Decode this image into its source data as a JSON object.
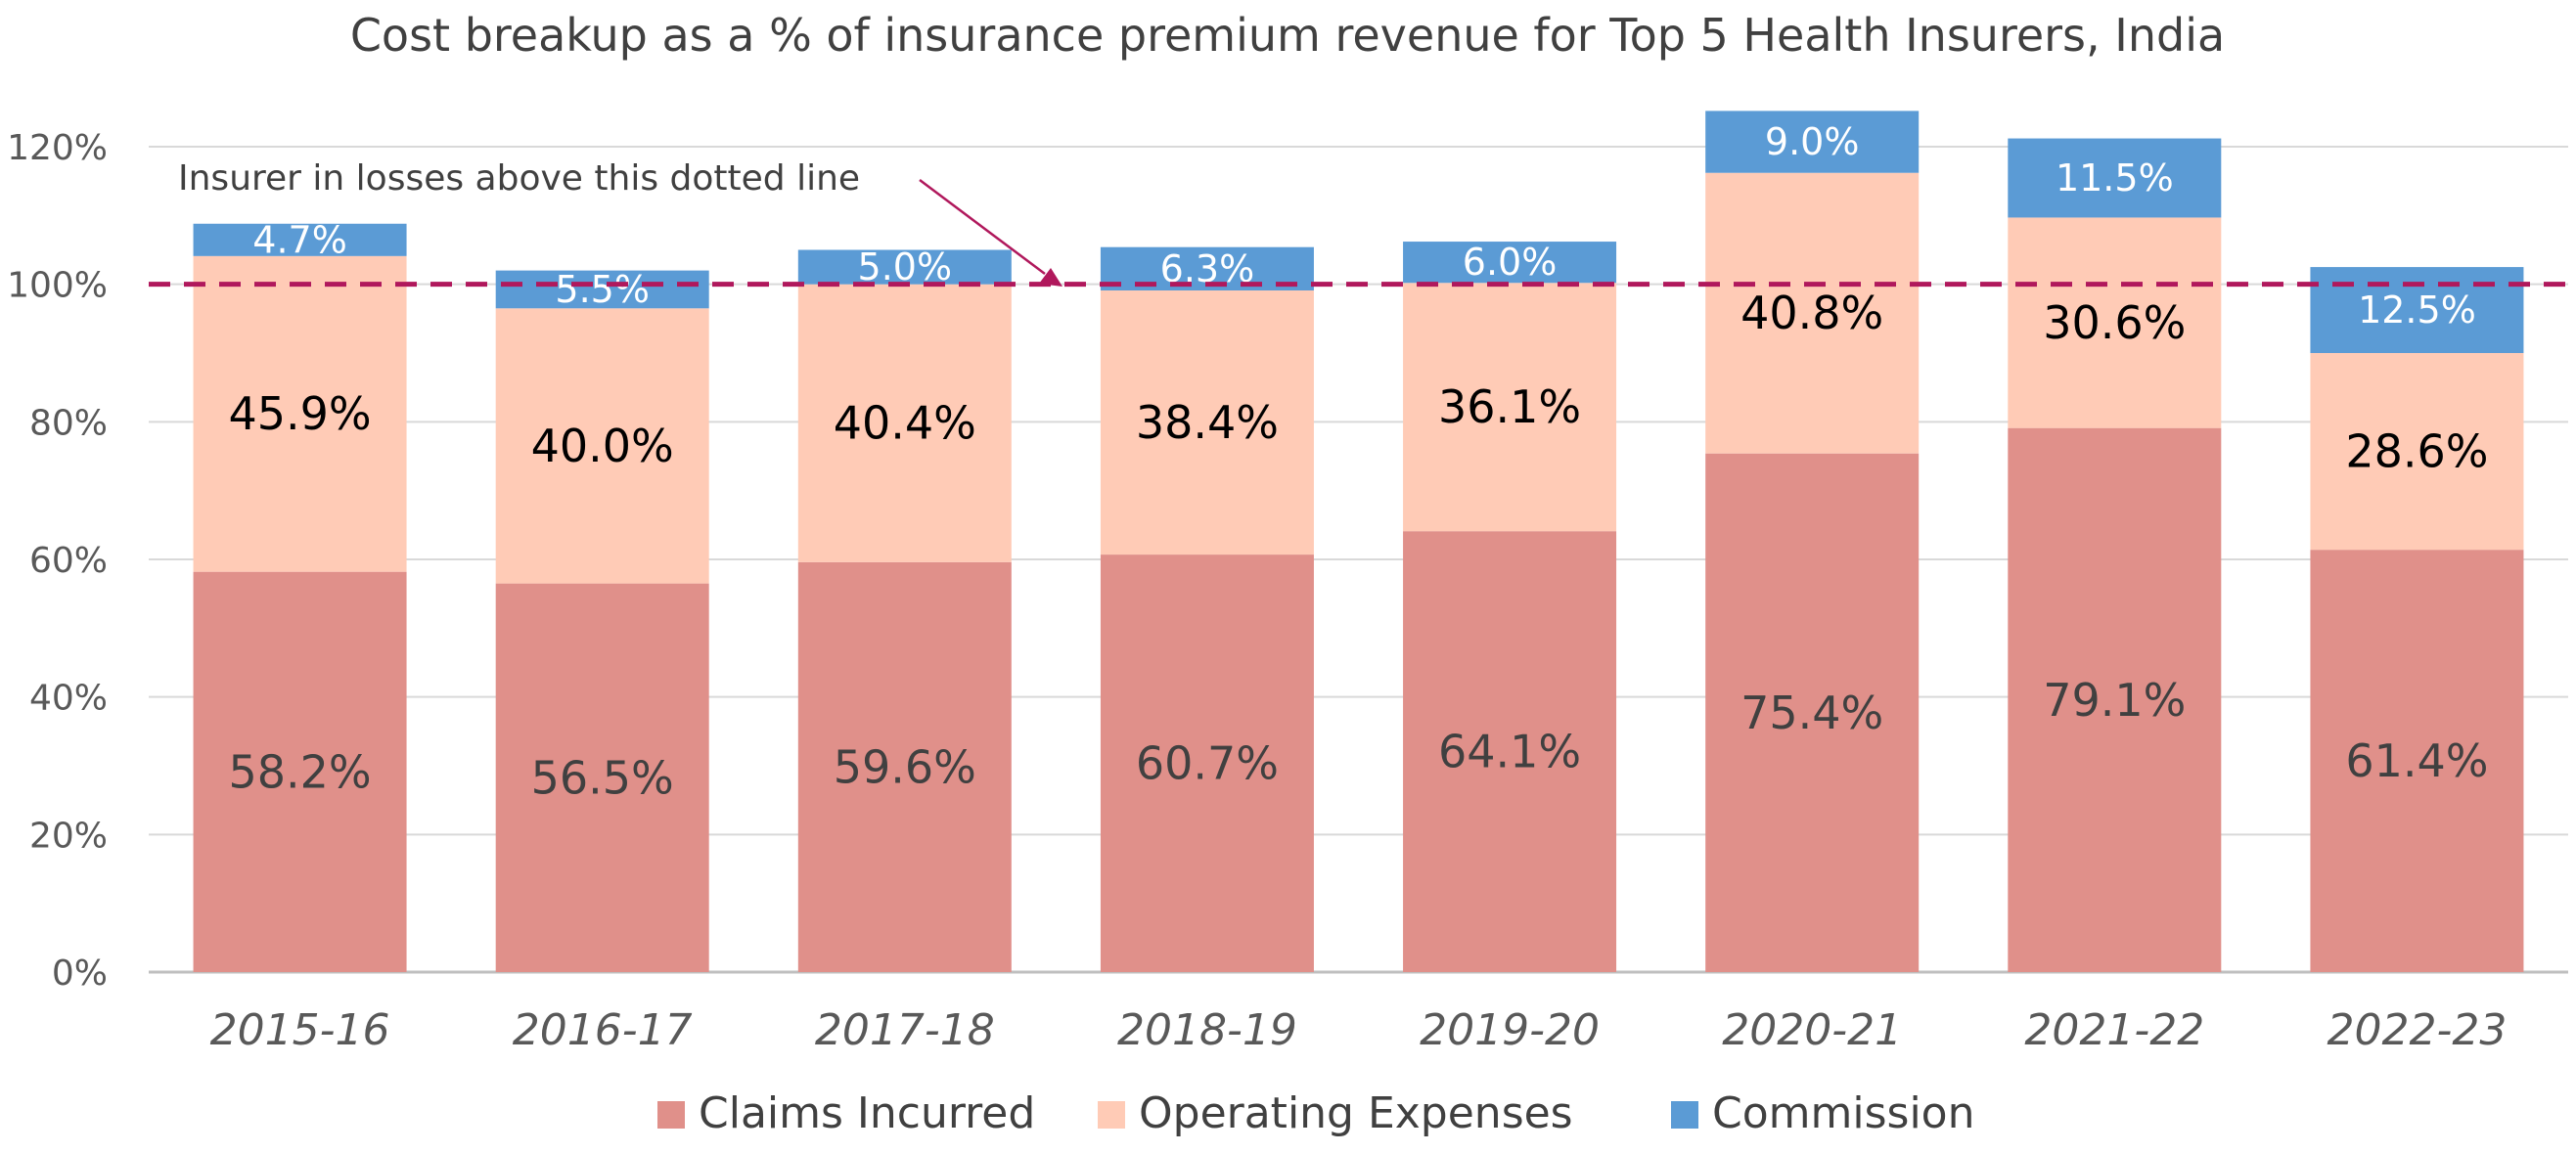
{
  "chart_data": {
    "type": "bar",
    "stacked": true,
    "title": "Cost breakup as a % of insurance premium revenue for Top 5 Health Insurers, India",
    "xlabel": "",
    "ylabel": "",
    "ylim": [
      0,
      120
    ],
    "yticks": [
      0,
      20,
      40,
      60,
      80,
      100,
      120
    ],
    "ytick_labels": [
      "0%",
      "20%",
      "40%",
      "60%",
      "80%",
      "100%",
      "120%"
    ],
    "grid": true,
    "legend_position": "bottom",
    "categories": [
      "2015-16",
      "2016-17",
      "2017-18",
      "2018-19",
      "2019-20",
      "2020-21",
      "2021-22",
      "2022-23"
    ],
    "series": [
      {
        "name": "Claims Incurred",
        "color": "#E0908A",
        "values": [
          58.2,
          56.5,
          59.6,
          60.7,
          64.1,
          75.4,
          79.1,
          61.4
        ],
        "labels": [
          "58.2%",
          "56.5%",
          "59.6%",
          "60.7%",
          "64.1%",
          "75.4%",
          "79.1%",
          "61.4%"
        ]
      },
      {
        "name": "Operating Expenses",
        "color": "#FFCBB6",
        "values": [
          45.9,
          40.0,
          40.4,
          38.4,
          36.1,
          40.8,
          30.6,
          28.6
        ],
        "labels": [
          "45.9%",
          "40.0%",
          "40.4%",
          "38.4%",
          "36.1%",
          "40.8%",
          "30.6%",
          "28.6%"
        ]
      },
      {
        "name": "Commission",
        "color": "#5B9BD5",
        "values": [
          4.7,
          5.5,
          5.0,
          6.3,
          6.0,
          9.0,
          11.5,
          12.5
        ],
        "labels": [
          "4.7%",
          "5.5%",
          "5.0%",
          "6.3%",
          "6.0%",
          "9.0%",
          "11.5%",
          "12.5%"
        ]
      }
    ],
    "reference_line": {
      "value": 100,
      "style": "dashed",
      "color": "#B0185C",
      "annotation": "Insurer in losses above this dotted line"
    },
    "colors": {
      "grid": "#D9D9D9",
      "axis": "#BFBFBF"
    }
  }
}
